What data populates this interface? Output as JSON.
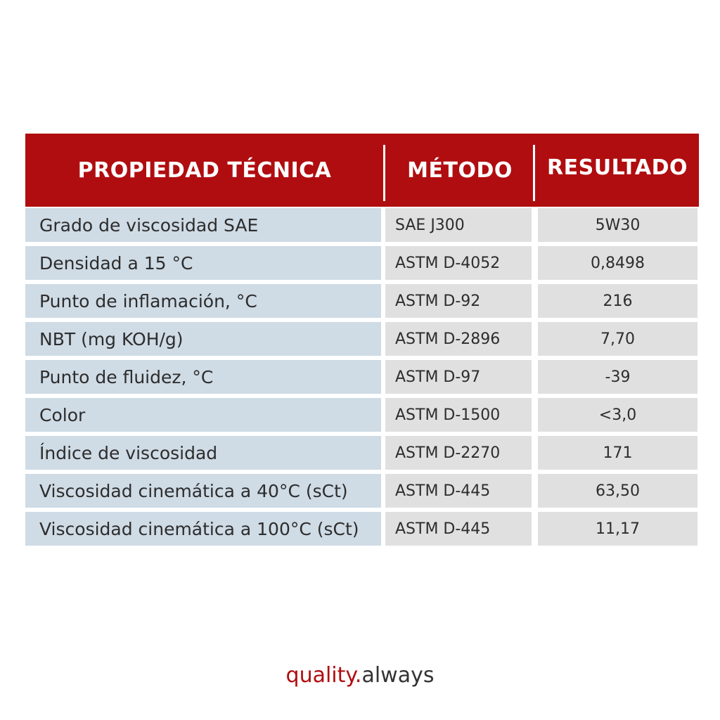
{
  "table": {
    "headers": {
      "property": "PROPIEDAD TÉCNICA",
      "method": "MÉTODO",
      "result": "RESULTADO"
    },
    "rows": [
      {
        "property": "Grado de viscosidad SAE",
        "method": "SAE J300",
        "result": "5W30"
      },
      {
        "property": "Densidad a 15 °C",
        "method": "ASTM D-4052",
        "result": "0,8498"
      },
      {
        "property": "Punto de inflamación, °C",
        "method": "ASTM D-92",
        "result": "216"
      },
      {
        "property": "NBT (mg KOH/g)",
        "method": "ASTM D-2896",
        "result": "7,70"
      },
      {
        "property": "Punto de fluidez, °C",
        "method": "ASTM D-97",
        "result": "-39"
      },
      {
        "property": "Color",
        "method": "ASTM D-1500",
        "result": "<3,0"
      },
      {
        "property": "Índice de viscosidad",
        "method": "ASTM D-2270",
        "result": "171"
      },
      {
        "property": "Viscosidad cinemática a 40°C (sCt)",
        "method": "ASTM D-445",
        "result": "63,50"
      },
      {
        "property": "Viscosidad cinemática a 100°C (sCt)",
        "method": "ASTM D-445",
        "result": "11,17"
      }
    ]
  },
  "tagline": {
    "quality": "quality",
    "dot": ".",
    "always": "always"
  },
  "colors": {
    "header_red": "#b00d10",
    "property_bg": "#cfdbe5",
    "value_bg": "#e0e0e0"
  }
}
